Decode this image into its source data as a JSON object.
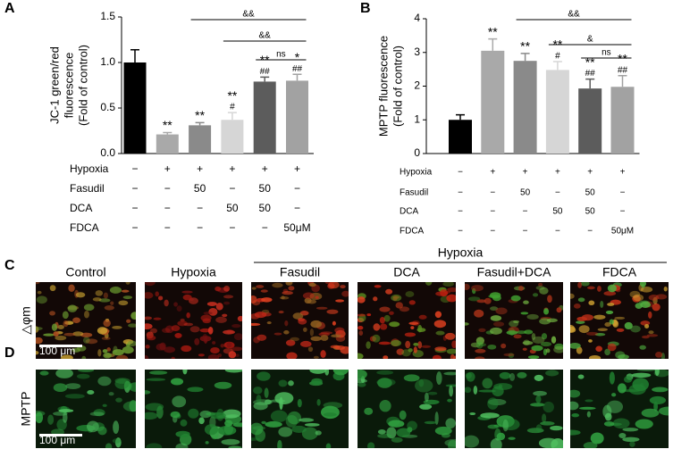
{
  "chart_data": [
    {
      "type": "bar",
      "panel": "A",
      "ylabel": [
        "JC-1 green/red",
        "fluorescence",
        "(Fold of control)"
      ],
      "values": [
        1.0,
        0.21,
        0.31,
        0.37,
        0.79,
        0.8
      ],
      "errors": [
        0.14,
        0.02,
        0.03,
        0.08,
        0.05,
        0.07
      ],
      "colors": [
        "#000000",
        "#a9a9a9",
        "#8a8a8a",
        "#d6d6d6",
        "#5c5c5c",
        "#a2a2a2"
      ],
      "ylim": [
        0,
        1.5
      ],
      "yticks": [
        {
          "value": 0,
          "label": "0.0"
        },
        0.5,
        {
          "value": 1,
          "label": "1.0"
        },
        1.5
      ],
      "bar_labels": [
        null,
        [
          "**"
        ],
        [
          "**"
        ],
        [
          "**",
          "#"
        ],
        [
          "**",
          "##"
        ],
        [
          "*",
          "##"
        ]
      ],
      "brackets": [
        {
          "from": 2,
          "to": 5,
          "label": "&&"
        },
        {
          "from": 3,
          "to": 5,
          "label": "&&"
        },
        {
          "from": 4,
          "to": 5,
          "label": "ns"
        }
      ],
      "treatments": [
        {
          "name": "Hypoxia",
          "cells": [
            "−",
            "+",
            "+",
            "+",
            "+",
            "+"
          ]
        },
        {
          "name": "Fasudil",
          "cells": [
            "−",
            "−",
            "50",
            "−",
            "50",
            "−"
          ]
        },
        {
          "name": "DCA",
          "cells": [
            "−",
            "−",
            "−",
            "50",
            "50",
            "−"
          ]
        },
        {
          "name": "FDCA",
          "cells": [
            "−",
            "−",
            "−",
            "−",
            "−",
            "50μM"
          ]
        }
      ]
    },
    {
      "type": "bar",
      "panel": "B",
      "ylabel": [
        "MPTP fluorescence",
        "(Fold of control)"
      ],
      "values": [
        1.0,
        3.05,
        2.75,
        2.48,
        1.93,
        1.98
      ],
      "errors": [
        0.15,
        0.35,
        0.22,
        0.25,
        0.28,
        0.33
      ],
      "colors": [
        "#000000",
        "#a9a9a9",
        "#8a8a8a",
        "#d6d6d6",
        "#5c5c5c",
        "#a2a2a2"
      ],
      "ylim": [
        0,
        4
      ],
      "yticks": [
        0,
        1,
        2,
        3,
        4
      ],
      "bar_labels": [
        null,
        [
          "**"
        ],
        [
          "**"
        ],
        [
          "**",
          "#"
        ],
        [
          "**",
          "##"
        ],
        [
          "**",
          "##"
        ]
      ],
      "brackets": [
        {
          "from": 2,
          "to": 5,
          "label": "&&"
        },
        {
          "from": 3,
          "to": 5,
          "label": "&"
        },
        {
          "from": 4,
          "to": 5,
          "label": "ns"
        }
      ],
      "treatments": [
        {
          "name": "Hypoxia",
          "cells": [
            "−",
            "+",
            "+",
            "+",
            "+",
            "+"
          ]
        },
        {
          "name": "Fasudil",
          "cells": [
            "−",
            "−",
            "50",
            "−",
            "50",
            "−"
          ]
        },
        {
          "name": "DCA",
          "cells": [
            "−",
            "−",
            "−",
            "50",
            "50",
            "−"
          ]
        },
        {
          "name": "FDCA",
          "cells": [
            "−",
            "−",
            "−",
            "−",
            "−",
            "50μM"
          ]
        }
      ]
    }
  ],
  "images": {
    "panel_c": "C",
    "panel_d": "D",
    "group_header": "Hypoxia",
    "columns": [
      "Control",
      "Hypoxia",
      "Fasudil",
      "DCA",
      "Fasudil+DCA",
      "FDCA"
    ],
    "rows": [
      "△φm",
      "MPTP"
    ],
    "scale_bar": "100 μm"
  }
}
